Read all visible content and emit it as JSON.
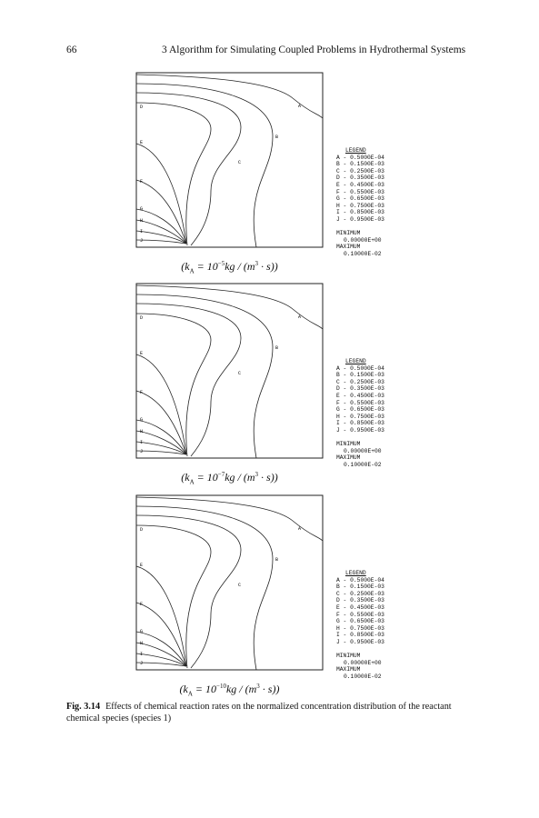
{
  "header": {
    "page": "66",
    "running_head": "3  Algorithm for Simulating Coupled Problems in Hydrothermal Systems"
  },
  "panels": [
    {
      "contour_labels": [
        "A",
        "B",
        "C",
        "D",
        "E",
        "F",
        "G",
        "H",
        "I",
        "J"
      ],
      "legend": {
        "title": "LEGEND",
        "entries": [
          "A - 0.5000E-04",
          "B - 0.1500E-03",
          "C - 0.2500E-03",
          "D - 0.3500E-03",
          "E - 0.4500E-03",
          "F - 0.5500E-03",
          "G - 0.6500E-03",
          "H - 0.7500E-03",
          "I - 0.8500E-03",
          "J - 0.9500E-03"
        ],
        "minimum_label": "MINIMUM",
        "minimum": "0.00000E+00",
        "maximum_label": "MAXIMUM",
        "maximum": "0.10000E-02"
      },
      "rate": [
        {
          "text": "(k"
        },
        {
          "sub": "A"
        },
        {
          "text": " = 10"
        },
        {
          "sup": "−5"
        },
        {
          "text": "kg / (m"
        },
        {
          "sup": "3"
        },
        {
          "text": " · s))"
        }
      ]
    },
    {
      "contour_labels": [
        "A",
        "B",
        "C",
        "D",
        "E",
        "F",
        "G",
        "H",
        "I",
        "J"
      ],
      "legend": {
        "title": "LEGEND",
        "entries": [
          "A - 0.5000E-04",
          "B - 0.1500E-03",
          "C - 0.2500E-03",
          "D - 0.3500E-03",
          "E - 0.4500E-03",
          "F - 0.5500E-03",
          "G - 0.6500E-03",
          "H - 0.7500E-03",
          "I - 0.8500E-03",
          "J - 0.9500E-03"
        ],
        "minimum_label": "MINIMUM",
        "minimum": "0.00000E+00",
        "maximum_label": "MAXIMUM",
        "maximum": "0.10000E-02"
      },
      "rate": [
        {
          "text": "(k"
        },
        {
          "sub": "A"
        },
        {
          "text": " = 10"
        },
        {
          "sup": "−7"
        },
        {
          "text": "kg / (m"
        },
        {
          "sup": "3"
        },
        {
          "text": " · s))"
        }
      ]
    },
    {
      "contour_labels": [
        "A",
        "B",
        "C",
        "D",
        "E",
        "F",
        "G",
        "H",
        "I",
        "J"
      ],
      "legend": {
        "title": "LEGEND",
        "entries": [
          "A - 0.5000E-04",
          "B - 0.1500E-03",
          "C - 0.2500E-03",
          "D - 0.3500E-03",
          "E - 0.4500E-03",
          "F - 0.5500E-03",
          "G - 0.6500E-03",
          "H - 0.7500E-03",
          "I - 0.8500E-03",
          "J - 0.9500E-03"
        ],
        "minimum_label": "MINIMUM",
        "minimum": "0.00000E+00",
        "maximum_label": "MAXIMUM",
        "maximum": "0.10000E-02"
      },
      "rate": [
        {
          "text": "(k"
        },
        {
          "sub": "A"
        },
        {
          "text": " = 10"
        },
        {
          "sup": "−10"
        },
        {
          "text": "kg / (m"
        },
        {
          "sup": "3"
        },
        {
          "text": " · s))"
        }
      ]
    }
  ],
  "caption": {
    "label": "Fig. 3.14",
    "text": "Effects of chemical reaction rates on the normalized concentration distribution of the reactant chemical species (species 1)"
  }
}
